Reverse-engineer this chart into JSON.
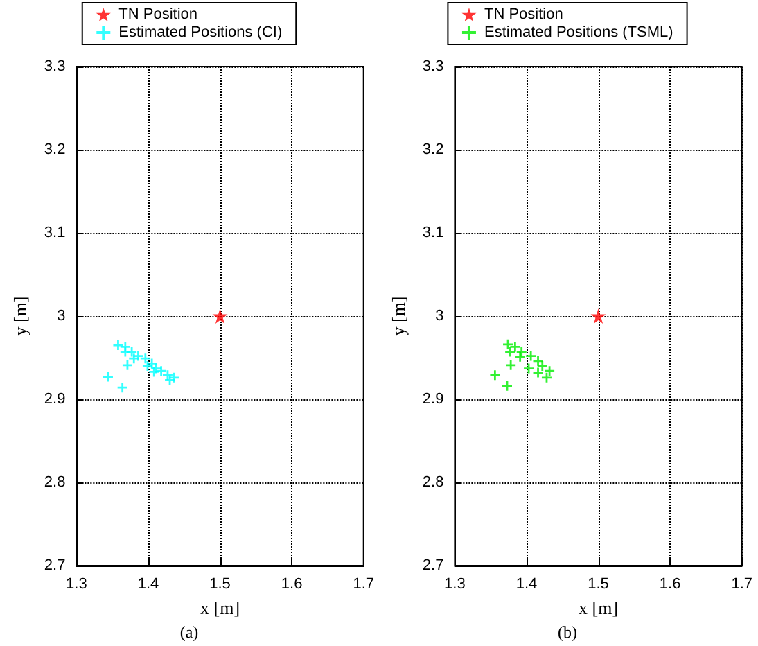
{
  "chart_data": [
    {
      "type": "scatter",
      "xlabel": "x [m]",
      "ylabel": "y [m]",
      "annotations": [
        "(a)"
      ],
      "xlim": [
        1.3,
        1.7
      ],
      "ylim": [
        2.7,
        3.3
      ],
      "xticks": [
        1.3,
        1.4,
        1.5,
        1.6,
        1.7
      ],
      "yticks": [
        2.7,
        2.8,
        2.9,
        3,
        3.1,
        3.2,
        3.3
      ],
      "grid": true,
      "legend": "top",
      "series": [
        {
          "name": "TN Position",
          "color": "#ff0000",
          "marker": "star",
          "x": [
            1.5
          ],
          "values": [
            3.0
          ]
        },
        {
          "name": "Estimated Positions (CI)",
          "color": "#00ffff",
          "marker": "cross",
          "x": [
            1.344,
            1.364,
            1.371,
            1.358,
            1.368,
            1.377,
            1.386,
            1.396,
            1.405,
            1.411,
            1.418,
            1.427,
            1.436,
            1.368,
            1.38,
            1.399,
            1.408,
            1.43
          ],
          "values": [
            2.927,
            2.914,
            2.941,
            2.965,
            2.963,
            2.957,
            2.952,
            2.949,
            2.943,
            2.937,
            2.934,
            2.929,
            2.926,
            2.957,
            2.949,
            2.94,
            2.933,
            2.923
          ]
        }
      ]
    },
    {
      "type": "scatter",
      "xlabel": "x [m]",
      "ylabel": "y [m]",
      "annotations": [
        "(b)"
      ],
      "xlim": [
        1.3,
        1.7
      ],
      "ylim": [
        2.7,
        3.3
      ],
      "xticks": [
        1.3,
        1.4,
        1.5,
        1.6,
        1.7
      ],
      "yticks": [
        2.7,
        2.8,
        2.9,
        3,
        3.1,
        3.2,
        3.3
      ],
      "grid": true,
      "legend": "top",
      "series": [
        {
          "name": "TN Position",
          "color": "#ff0000",
          "marker": "star",
          "x": [
            1.5
          ],
          "values": [
            3.0
          ]
        },
        {
          "name": "Estimated Positions (TSML)",
          "color": "#00ee00",
          "marker": "cross",
          "x": [
            1.356,
            1.373,
            1.378,
            1.374,
            1.384,
            1.393,
            1.406,
            1.416,
            1.422,
            1.432,
            1.428,
            1.377,
            1.391,
            1.403,
            1.416
          ],
          "values": [
            2.929,
            2.916,
            2.941,
            2.966,
            2.963,
            2.957,
            2.952,
            2.946,
            2.94,
            2.934,
            2.926,
            2.957,
            2.951,
            2.937,
            2.932
          ]
        }
      ]
    }
  ]
}
